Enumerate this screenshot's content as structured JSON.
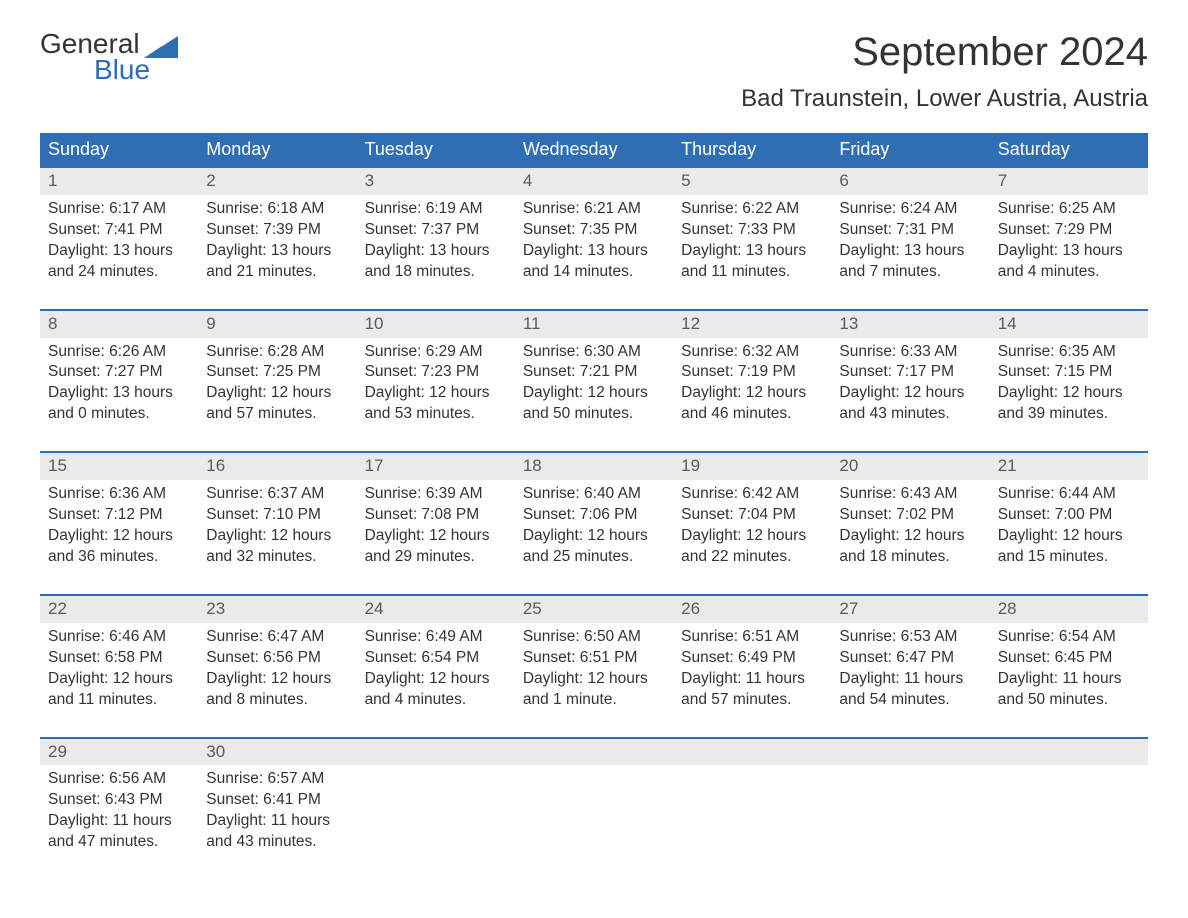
{
  "logo": {
    "word1": "General",
    "word2": "Blue",
    "color_dark": "#333333",
    "color_blue": "#2f6eb5"
  },
  "title": "September 2024",
  "location": "Bad Traunstein, Lower Austria, Austria",
  "header_bg": "#2f6eb5",
  "header_fg": "#ffffff",
  "daynum_bg": "#eaeaea",
  "week_border": "#2f6eb5",
  "day_names": [
    "Sunday",
    "Monday",
    "Tuesday",
    "Wednesday",
    "Thursday",
    "Friday",
    "Saturday"
  ],
  "weeks": [
    [
      {
        "n": "1",
        "sr": "Sunrise: 6:17 AM",
        "ss": "Sunset: 7:41 PM",
        "d1": "Daylight: 13 hours",
        "d2": "and 24 minutes."
      },
      {
        "n": "2",
        "sr": "Sunrise: 6:18 AM",
        "ss": "Sunset: 7:39 PM",
        "d1": "Daylight: 13 hours",
        "d2": "and 21 minutes."
      },
      {
        "n": "3",
        "sr": "Sunrise: 6:19 AM",
        "ss": "Sunset: 7:37 PM",
        "d1": "Daylight: 13 hours",
        "d2": "and 18 minutes."
      },
      {
        "n": "4",
        "sr": "Sunrise: 6:21 AM",
        "ss": "Sunset: 7:35 PM",
        "d1": "Daylight: 13 hours",
        "d2": "and 14 minutes."
      },
      {
        "n": "5",
        "sr": "Sunrise: 6:22 AM",
        "ss": "Sunset: 7:33 PM",
        "d1": "Daylight: 13 hours",
        "d2": "and 11 minutes."
      },
      {
        "n": "6",
        "sr": "Sunrise: 6:24 AM",
        "ss": "Sunset: 7:31 PM",
        "d1": "Daylight: 13 hours",
        "d2": "and 7 minutes."
      },
      {
        "n": "7",
        "sr": "Sunrise: 6:25 AM",
        "ss": "Sunset: 7:29 PM",
        "d1": "Daylight: 13 hours",
        "d2": "and 4 minutes."
      }
    ],
    [
      {
        "n": "8",
        "sr": "Sunrise: 6:26 AM",
        "ss": "Sunset: 7:27 PM",
        "d1": "Daylight: 13 hours",
        "d2": "and 0 minutes."
      },
      {
        "n": "9",
        "sr": "Sunrise: 6:28 AM",
        "ss": "Sunset: 7:25 PM",
        "d1": "Daylight: 12 hours",
        "d2": "and 57 minutes."
      },
      {
        "n": "10",
        "sr": "Sunrise: 6:29 AM",
        "ss": "Sunset: 7:23 PM",
        "d1": "Daylight: 12 hours",
        "d2": "and 53 minutes."
      },
      {
        "n": "11",
        "sr": "Sunrise: 6:30 AM",
        "ss": "Sunset: 7:21 PM",
        "d1": "Daylight: 12 hours",
        "d2": "and 50 minutes."
      },
      {
        "n": "12",
        "sr": "Sunrise: 6:32 AM",
        "ss": "Sunset: 7:19 PM",
        "d1": "Daylight: 12 hours",
        "d2": "and 46 minutes."
      },
      {
        "n": "13",
        "sr": "Sunrise: 6:33 AM",
        "ss": "Sunset: 7:17 PM",
        "d1": "Daylight: 12 hours",
        "d2": "and 43 minutes."
      },
      {
        "n": "14",
        "sr": "Sunrise: 6:35 AM",
        "ss": "Sunset: 7:15 PM",
        "d1": "Daylight: 12 hours",
        "d2": "and 39 minutes."
      }
    ],
    [
      {
        "n": "15",
        "sr": "Sunrise: 6:36 AM",
        "ss": "Sunset: 7:12 PM",
        "d1": "Daylight: 12 hours",
        "d2": "and 36 minutes."
      },
      {
        "n": "16",
        "sr": "Sunrise: 6:37 AM",
        "ss": "Sunset: 7:10 PM",
        "d1": "Daylight: 12 hours",
        "d2": "and 32 minutes."
      },
      {
        "n": "17",
        "sr": "Sunrise: 6:39 AM",
        "ss": "Sunset: 7:08 PM",
        "d1": "Daylight: 12 hours",
        "d2": "and 29 minutes."
      },
      {
        "n": "18",
        "sr": "Sunrise: 6:40 AM",
        "ss": "Sunset: 7:06 PM",
        "d1": "Daylight: 12 hours",
        "d2": "and 25 minutes."
      },
      {
        "n": "19",
        "sr": "Sunrise: 6:42 AM",
        "ss": "Sunset: 7:04 PM",
        "d1": "Daylight: 12 hours",
        "d2": "and 22 minutes."
      },
      {
        "n": "20",
        "sr": "Sunrise: 6:43 AM",
        "ss": "Sunset: 7:02 PM",
        "d1": "Daylight: 12 hours",
        "d2": "and 18 minutes."
      },
      {
        "n": "21",
        "sr": "Sunrise: 6:44 AM",
        "ss": "Sunset: 7:00 PM",
        "d1": "Daylight: 12 hours",
        "d2": "and 15 minutes."
      }
    ],
    [
      {
        "n": "22",
        "sr": "Sunrise: 6:46 AM",
        "ss": "Sunset: 6:58 PM",
        "d1": "Daylight: 12 hours",
        "d2": "and 11 minutes."
      },
      {
        "n": "23",
        "sr": "Sunrise: 6:47 AM",
        "ss": "Sunset: 6:56 PM",
        "d1": "Daylight: 12 hours",
        "d2": "and 8 minutes."
      },
      {
        "n": "24",
        "sr": "Sunrise: 6:49 AM",
        "ss": "Sunset: 6:54 PM",
        "d1": "Daylight: 12 hours",
        "d2": "and 4 minutes."
      },
      {
        "n": "25",
        "sr": "Sunrise: 6:50 AM",
        "ss": "Sunset: 6:51 PM",
        "d1": "Daylight: 12 hours",
        "d2": "and 1 minute."
      },
      {
        "n": "26",
        "sr": "Sunrise: 6:51 AM",
        "ss": "Sunset: 6:49 PM",
        "d1": "Daylight: 11 hours",
        "d2": "and 57 minutes."
      },
      {
        "n": "27",
        "sr": "Sunrise: 6:53 AM",
        "ss": "Sunset: 6:47 PM",
        "d1": "Daylight: 11 hours",
        "d2": "and 54 minutes."
      },
      {
        "n": "28",
        "sr": "Sunrise: 6:54 AM",
        "ss": "Sunset: 6:45 PM",
        "d1": "Daylight: 11 hours",
        "d2": "and 50 minutes."
      }
    ],
    [
      {
        "n": "29",
        "sr": "Sunrise: 6:56 AM",
        "ss": "Sunset: 6:43 PM",
        "d1": "Daylight: 11 hours",
        "d2": "and 47 minutes."
      },
      {
        "n": "30",
        "sr": "Sunrise: 6:57 AM",
        "ss": "Sunset: 6:41 PM",
        "d1": "Daylight: 11 hours",
        "d2": "and 43 minutes."
      },
      {
        "empty": true
      },
      {
        "empty": true
      },
      {
        "empty": true
      },
      {
        "empty": true
      },
      {
        "empty": true
      }
    ]
  ]
}
